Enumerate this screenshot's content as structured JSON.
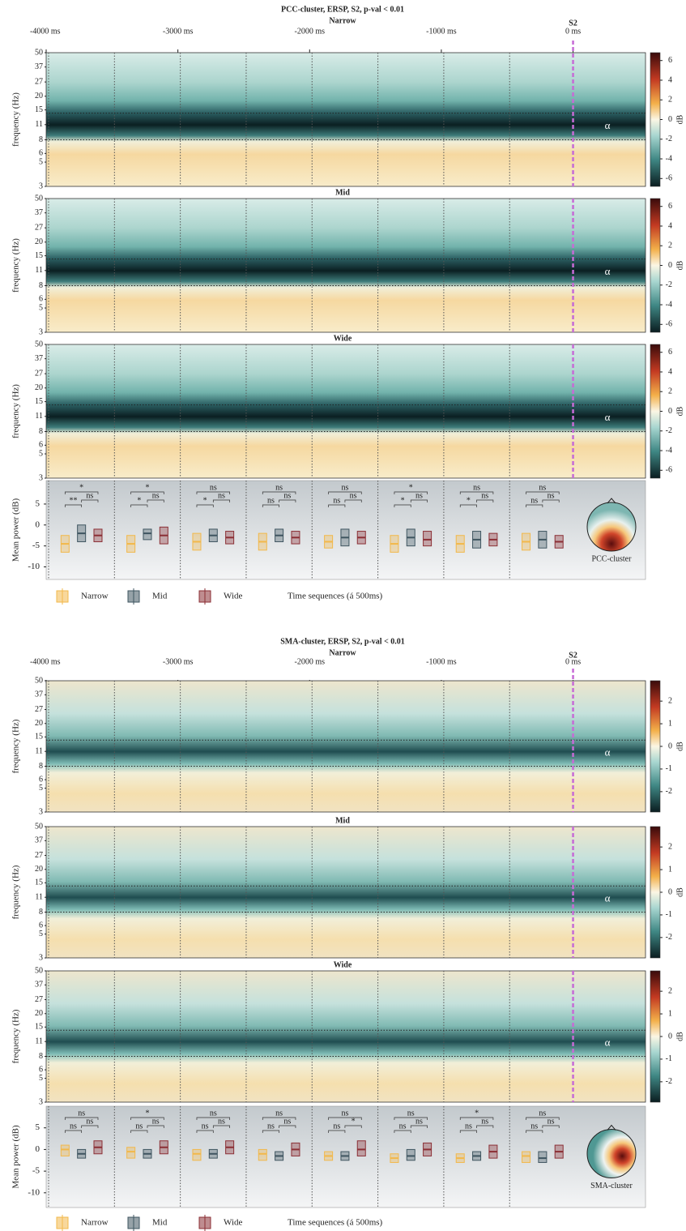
{
  "chart_data": [
    {
      "type": "heatmap",
      "title": "PCC-cluster, ERSP, S2, p-val < 0.01",
      "panels": [
        "Narrow",
        "Mid",
        "Wide"
      ],
      "xlim": [
        -4000,
        550
      ],
      "xticks": [
        {
          "value": -4000,
          "label": "-4000 ms"
        },
        {
          "value": -3000,
          "label": "-3000 ms"
        },
        {
          "value": -2000,
          "label": "-2000 ms"
        },
        {
          "value": -1000,
          "label": "-1000 ms"
        },
        {
          "value": 0,
          "label": "0 ms"
        }
      ],
      "ylabel": "frequency (Hz)",
      "ylim": [
        3,
        50
      ],
      "log": true,
      "yticks": [
        3,
        5,
        6,
        8,
        11,
        15,
        20,
        27,
        37,
        50
      ],
      "band": {
        "label": "α",
        "range": [
          8,
          14
        ]
      },
      "event": {
        "value": 0,
        "label": "S2",
        "color": "#c66bd6"
      },
      "colorbar": {
        "label": "dB",
        "lim": [
          -6.8,
          6.8
        ],
        "ticks": [
          6,
          4,
          2,
          0,
          -2,
          -4,
          -6
        ]
      }
    },
    {
      "type": "box",
      "ylabel": "Mean power (dB)",
      "ylim": [
        -13,
        10.6
      ],
      "yticks": [
        5,
        0,
        -5,
        -10
      ],
      "series": [
        {
          "name": "Narrow",
          "color": "#f2b84b",
          "median": [
            -4.5,
            -4.5,
            -4,
            -4,
            -4,
            -4.5,
            -4.5,
            -4
          ],
          "q1": [
            -6.5,
            -6.5,
            -6,
            -6,
            -5.5,
            -6.5,
            -6.5,
            -6
          ],
          "q3": [
            -2.5,
            -2.5,
            -2,
            -2,
            -2.5,
            -2.5,
            -2.5,
            -2
          ]
        },
        {
          "name": "Mid",
          "color": "#3f5560",
          "median": [
            -2,
            -2,
            -2.5,
            -2.5,
            -3,
            -3,
            -3.5,
            -3.5
          ],
          "q1": [
            -4,
            -3.5,
            -4,
            -4,
            -5,
            -5,
            -5.5,
            -5.5
          ],
          "q3": [
            0,
            -1,
            -1,
            -1,
            -1,
            -1,
            -1.5,
            -1.5
          ]
        },
        {
          "name": "Wide",
          "color": "#8b2f35",
          "median": [
            -2.5,
            -2.5,
            -3,
            -3,
            -3,
            -3.5,
            -3.5,
            -4
          ],
          "q1": [
            -4,
            -4.5,
            -4.5,
            -4.5,
            -4.5,
            -5,
            -5,
            -5.5
          ],
          "q3": [
            -1,
            -0.5,
            -1.5,
            -1.5,
            -1.5,
            -1.5,
            -2,
            -2.5
          ]
        }
      ],
      "sig": [
        [
          "*",
          "**",
          "ns"
        ],
        [
          "*",
          "*",
          "ns"
        ],
        [
          "ns",
          "*",
          "ns"
        ],
        [
          "ns",
          "ns",
          "ns"
        ],
        [
          "ns",
          "ns",
          "ns"
        ],
        [
          "*",
          "*",
          "ns"
        ],
        [
          "ns",
          "*",
          "ns"
        ],
        [
          "ns",
          "ns",
          "ns"
        ]
      ],
      "topo_label": "PCC-cluster",
      "xlabel": "Time sequences (á 500ms)"
    },
    {
      "type": "heatmap",
      "title": "SMA-cluster, ERSP, S2, p-val < 0.01",
      "panels": [
        "Narrow",
        "Mid",
        "Wide"
      ],
      "xlim": [
        -4000,
        550
      ],
      "xticks": [
        {
          "value": -4000,
          "label": "-4000 ms"
        },
        {
          "value": -3000,
          "label": "-3000 ms"
        },
        {
          "value": -2000,
          "label": "-2000 ms"
        },
        {
          "value": -1000,
          "label": "-1000 ms"
        },
        {
          "value": 0,
          "label": "0 ms"
        }
      ],
      "ylabel": "frequency (Hz)",
      "ylim": [
        3,
        50
      ],
      "log": true,
      "yticks": [
        3,
        5,
        6,
        8,
        11,
        15,
        20,
        27,
        37,
        50
      ],
      "band": {
        "label": "α",
        "range": [
          8,
          14
        ]
      },
      "event": {
        "value": 0,
        "label": "S2",
        "color": "#c66bd6"
      },
      "colorbar": {
        "label": "dB",
        "lim": [
          -2.9,
          2.9
        ],
        "ticks": [
          2,
          1,
          0,
          -1,
          -2
        ]
      }
    },
    {
      "type": "box",
      "ylabel": "Mean power (dB)",
      "ylim": [
        -13.4,
        10
      ],
      "yticks": [
        5,
        0,
        -5,
        -10
      ],
      "series": [
        {
          "name": "Narrow",
          "color": "#f2b84b",
          "median": [
            0,
            -0.5,
            -1,
            -1,
            -1.5,
            -2,
            -2,
            -1.5
          ],
          "q1": [
            -1.5,
            -2,
            -2.5,
            -2.5,
            -2.5,
            -3,
            -3,
            -3
          ],
          "q3": [
            1,
            0.5,
            0,
            0,
            -0.5,
            -1,
            -1,
            -0.5
          ]
        },
        {
          "name": "Mid",
          "color": "#3f5560",
          "median": [
            -1,
            -1,
            -1,
            -1.5,
            -1.5,
            -1.5,
            -1.5,
            -2
          ],
          "q1": [
            -2,
            -2,
            -2,
            -2.5,
            -2.5,
            -2.5,
            -2.5,
            -3
          ],
          "q3": [
            0,
            0,
            0,
            -0.5,
            -0.5,
            0,
            -0.5,
            -0.5
          ]
        },
        {
          "name": "Wide",
          "color": "#8b2f35",
          "median": [
            0.5,
            0.5,
            0.5,
            0,
            0,
            0,
            -0.5,
            -0.5
          ],
          "q1": [
            -1,
            -1,
            -1,
            -1.5,
            -1.5,
            -1.5,
            -2,
            -2
          ],
          "q3": [
            2,
            2,
            2,
            1.5,
            2,
            1.5,
            1,
            1
          ]
        }
      ],
      "sig": [
        [
          "ns",
          "ns",
          "ns"
        ],
        [
          "*",
          "ns",
          "ns"
        ],
        [
          "ns",
          "ns",
          "ns"
        ],
        [
          "ns",
          "ns",
          "ns"
        ],
        [
          "ns",
          "ns",
          "*"
        ],
        [
          "ns",
          "ns",
          "ns"
        ],
        [
          "*",
          "ns",
          "ns"
        ],
        [
          "ns",
          "ns",
          "ns"
        ]
      ],
      "topo_label": "SMA-cluster",
      "xlabel": "Time sequences (á 500ms)"
    }
  ]
}
